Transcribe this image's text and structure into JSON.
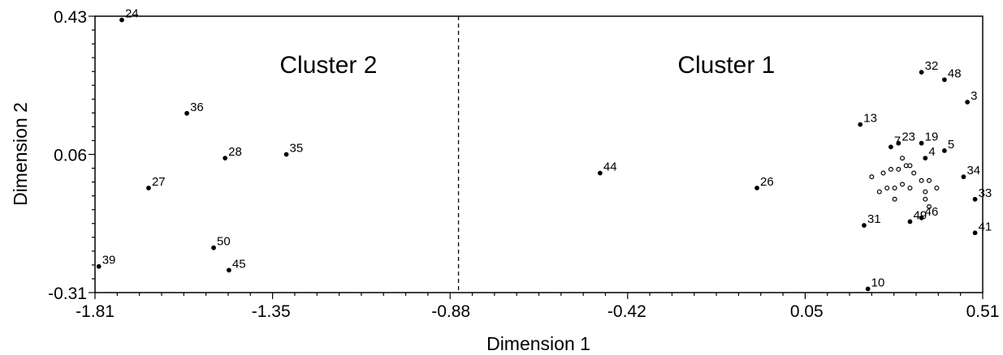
{
  "chart_data": {
    "type": "scatter",
    "xlabel": "Dimension 1",
    "ylabel": "Dimension 2",
    "xlim": [
      -1.81,
      0.51
    ],
    "ylim": [
      -0.31,
      0.43
    ],
    "xticks": [
      -1.81,
      -1.35,
      -0.88,
      -0.42,
      0.05,
      0.51
    ],
    "xtick_labels": [
      "-1.81",
      "-1.35",
      "-0.88",
      "-0.42",
      "0.05",
      "0.51"
    ],
    "yticks": [
      -0.31,
      0.06,
      0.43
    ],
    "ytick_labels": [
      "-0.31",
      "0.06",
      "0.43"
    ],
    "divider_x": -0.86,
    "annotations": [
      {
        "text": "Cluster 2",
        "x": -1.2,
        "y": 0.3
      },
      {
        "text": "Cluster 1",
        "x": -0.16,
        "y": 0.3
      }
    ],
    "labeled_points": [
      {
        "label": "24",
        "x": -1.74,
        "y": 0.42
      },
      {
        "label": "36",
        "x": -1.57,
        "y": 0.17
      },
      {
        "label": "28",
        "x": -1.47,
        "y": 0.05
      },
      {
        "label": "35",
        "x": -1.31,
        "y": 0.06
      },
      {
        "label": "27",
        "x": -1.67,
        "y": -0.03
      },
      {
        "label": "50",
        "x": -1.5,
        "y": -0.19
      },
      {
        "label": "45",
        "x": -1.46,
        "y": -0.25
      },
      {
        "label": "39",
        "x": -1.8,
        "y": -0.24
      },
      {
        "label": "44",
        "x": -0.49,
        "y": 0.01
      },
      {
        "label": "26",
        "x": -0.08,
        "y": -0.03
      },
      {
        "label": "13",
        "x": 0.19,
        "y": 0.14
      },
      {
        "label": "32",
        "x": 0.35,
        "y": 0.28
      },
      {
        "label": "48",
        "x": 0.41,
        "y": 0.26
      },
      {
        "label": "3",
        "x": 0.47,
        "y": 0.2
      },
      {
        "label": "19",
        "x": 0.35,
        "y": 0.09
      },
      {
        "label": "23",
        "x": 0.29,
        "y": 0.09
      },
      {
        "label": "7",
        "x": 0.27,
        "y": 0.08
      },
      {
        "label": "5",
        "x": 0.41,
        "y": 0.07
      },
      {
        "label": "4",
        "x": 0.36,
        "y": 0.05
      },
      {
        "label": "34",
        "x": 0.46,
        "y": 0.0
      },
      {
        "label": "33",
        "x": 0.49,
        "y": -0.06
      },
      {
        "label": "31",
        "x": 0.2,
        "y": -0.13
      },
      {
        "label": "46",
        "x": 0.35,
        "y": -0.11
      },
      {
        "label": "49",
        "x": 0.32,
        "y": -0.12
      },
      {
        "label": "41",
        "x": 0.49,
        "y": -0.15
      },
      {
        "label": "10",
        "x": 0.21,
        "y": -0.3
      }
    ],
    "unlabeled_points": [
      {
        "x": 0.22,
        "y": 0.0
      },
      {
        "x": 0.25,
        "y": 0.01
      },
      {
        "x": 0.27,
        "y": 0.02
      },
      {
        "x": 0.29,
        "y": 0.02
      },
      {
        "x": 0.31,
        "y": 0.03
      },
      {
        "x": 0.33,
        "y": 0.01
      },
      {
        "x": 0.35,
        "y": -0.01
      },
      {
        "x": 0.37,
        "y": -0.01
      },
      {
        "x": 0.39,
        "y": -0.03
      },
      {
        "x": 0.24,
        "y": -0.04
      },
      {
        "x": 0.26,
        "y": -0.03
      },
      {
        "x": 0.28,
        "y": -0.03
      },
      {
        "x": 0.3,
        "y": -0.02
      },
      {
        "x": 0.32,
        "y": -0.03
      },
      {
        "x": 0.36,
        "y": -0.04
      },
      {
        "x": 0.28,
        "y": -0.06
      },
      {
        "x": 0.36,
        "y": -0.06
      },
      {
        "x": 0.3,
        "y": 0.05
      },
      {
        "x": 0.32,
        "y": 0.03
      },
      {
        "x": 0.37,
        "y": -0.08
      }
    ]
  }
}
